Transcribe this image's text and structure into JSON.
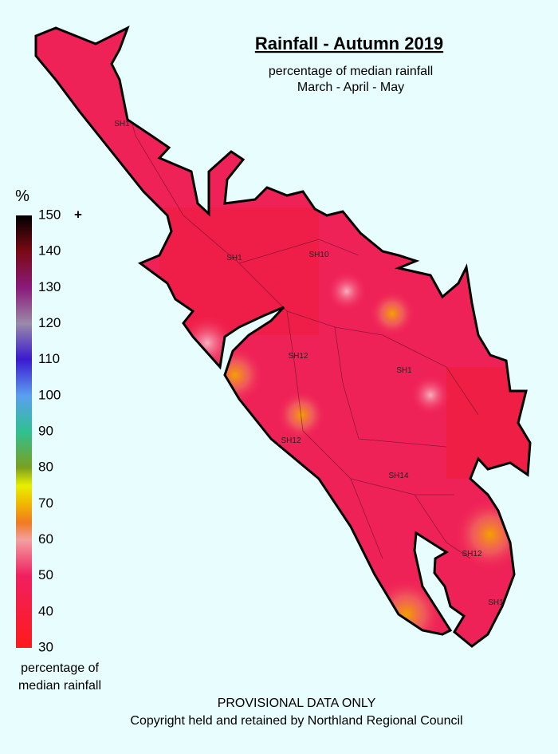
{
  "title": "Rainfall - Autumn 2019",
  "subtitle": [
    "percentage of median rainfall",
    "March - April - May"
  ],
  "legend": {
    "unit": "%",
    "ylim": [
      30,
      150
    ],
    "ticks": [
      150,
      140,
      130,
      120,
      110,
      100,
      90,
      80,
      70,
      60,
      50,
      40,
      30
    ],
    "max_suffix": "+",
    "caption": [
      "percentage of",
      "median rainfall"
    ]
  },
  "roads": [
    "SH1",
    "SH1",
    "SH10",
    "SH12",
    "SH1",
    "SH12",
    "SH14",
    "SH12",
    "SH1"
  ],
  "footer": [
    "PROVISIONAL DATA ONLY",
    "Copyright held and retained by Northland Regional Council"
  ]
}
